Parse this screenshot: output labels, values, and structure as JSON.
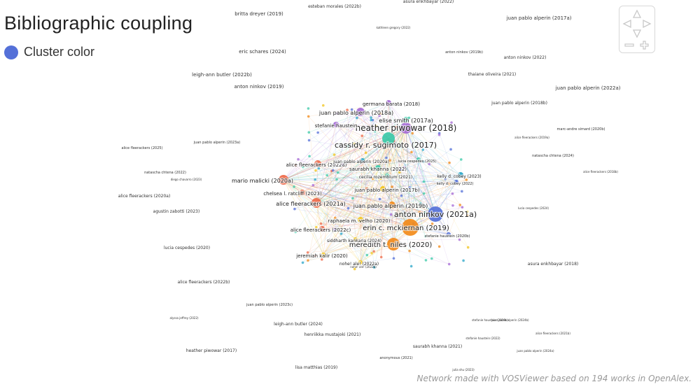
{
  "title": "Bibliographic coupling",
  "legend": {
    "label": "Cluster color",
    "color": "#5470d8"
  },
  "footer": "Network made with VOSViewer based on 194 works in OpenAlex.",
  "navigation": [
    "pan-up",
    "pan-left",
    "pan-right",
    "pan-down",
    "zoom-out",
    "zoom-in"
  ],
  "clusters": {
    "blue": "#5470d8",
    "orange": "#f28a1a",
    "purple": "#a56ad6",
    "teal": "#3cc9a8",
    "red": "#ee6a4a",
    "yellow": "#f2c41c",
    "cyan": "#2aa6c8"
  },
  "nodes": [
    {
      "label": "heather piwowar (2018)",
      "c": "purple",
      "r": 8
    },
    {
      "label": "cassidy r. sugimoto (2017)",
      "c": "teal",
      "r": 9
    },
    {
      "label": "anton ninkov (2021a)",
      "c": "blue",
      "r": 11
    },
    {
      "label": "erin c. mckiernan (2019)",
      "c": "orange",
      "r": 12
    },
    {
      "label": "meredith t. niles (2020)",
      "c": "orange",
      "r": 9
    },
    {
      "label": "juan pablo alperin (2018a)",
      "c": "purple",
      "r": 6
    },
    {
      "label": "germana barata (2018)",
      "c": "purple",
      "r": 4
    },
    {
      "label": "elise smith (2017a)",
      "c": "teal",
      "r": 4
    },
    {
      "label": "stefanie haustein",
      "c": "purple",
      "r": 4
    },
    {
      "label": "saurabh khanna (2022)",
      "c": "teal",
      "r": 4
    },
    {
      "label": "alice fleerackers (2022a)",
      "c": "red",
      "r": 5
    },
    {
      "label": "mario malicki (2020a)",
      "c": "red",
      "r": 7
    },
    {
      "label": "chelsea l. ratcliff (2023)",
      "c": "red",
      "r": 4
    },
    {
      "label": "juan pablo alperin (2017b)",
      "c": "yellow",
      "r": 4
    },
    {
      "label": "alice fleerackers (2021a)",
      "c": "red",
      "r": 7
    },
    {
      "label": "juan pablo alperin (2019b)",
      "c": "orange",
      "r": 5
    },
    {
      "label": "raphaela m. velho (2020)",
      "c": "yellow",
      "r": 4
    },
    {
      "label": "alice fleerackers (2022c)",
      "c": "red",
      "r": 4
    },
    {
      "label": "siddharth kankaria (2024)",
      "c": "yellow",
      "r": 3
    },
    {
      "label": "jeremiah kalir (2020)",
      "c": "yellow",
      "r": 3
    },
    {
      "label": "nohe! ale! (2022a)",
      "c": "yellow",
      "r": 3
    },
    {
      "label": "kelly d. cobey (2023)",
      "c": "cyan",
      "r": 4
    },
    {
      "label": "kelly d. cobey (2022)",
      "c": "blue",
      "r": 3
    },
    {
      "label": "cecilia rozemblum (2021)",
      "c": "teal",
      "r": 3
    },
    {
      "label": "lucia cespedes (2025)",
      "c": "teal",
      "r": 3
    },
    {
      "label": "juan pablo alperin (2020a)",
      "c": "cyan",
      "r": 3
    },
    {
      "label": "stefanie haustein (2020b)",
      "c": "blue",
      "r": 3
    }
  ],
  "labels": [
    {
      "t": "britta dreyer (2019)",
      "s": 7
    },
    {
      "t": "esteban morales (2022b)",
      "s": 6
    },
    {
      "t": "asura enkhbayar (2022)",
      "s": 6
    },
    {
      "t": "juan pablo alperin (2017a)",
      "s": 7
    },
    {
      "t": "eric schares (2024)",
      "s": 7
    },
    {
      "t": "anton ninkov (2019b)",
      "s": 5
    },
    {
      "t": "anton ninkov (2022)",
      "s": 6
    },
    {
      "t": "leigh-ann butler (2022b)",
      "s": 7
    },
    {
      "t": "thaiane oliveira (2021)",
      "s": 6
    },
    {
      "t": "anton ninkov (2019)",
      "s": 7
    },
    {
      "t": "juan pablo alperin (2022a)",
      "s": 7
    },
    {
      "t": "juan pablo alperin (2018b)",
      "s": 6
    },
    {
      "t": "marc-andre simard (2020b)",
      "s": 5
    },
    {
      "t": "juan pablo alperin (2023a)",
      "s": 5
    },
    {
      "t": "natascha chtena (2024)",
      "s": 5
    },
    {
      "t": "natascha chtena (2022)",
      "s": 5
    },
    {
      "t": "alice fleerackers (2025)",
      "s": 5
    },
    {
      "t": "diego chavarro (2023)",
      "s": 4
    },
    {
      "t": "alice fleerackers (2020a)",
      "s": 6
    },
    {
      "t": "agustin zabotti (2023)",
      "s": 6
    },
    {
      "t": "lucia cespedes (2024)",
      "s": 4
    },
    {
      "t": "lucia cespedes (2020)",
      "s": 6
    },
    {
      "t": "asura enkhbayar (2018)",
      "s": 6
    },
    {
      "t": "alice fleerackers (2022b)",
      "s": 6
    },
    {
      "t": "juan pablo alperin (2023c)",
      "s": 5
    },
    {
      "t": "stefanie haustein (2019b)",
      "s": 4
    },
    {
      "t": "leigh-ann butler (2024)",
      "s": 6
    },
    {
      "t": "juan pablo alperin (2024b)",
      "s": 4
    },
    {
      "t": "henriikka mustajoki (2021)",
      "s": 6
    },
    {
      "t": "heather piwowar (2017)",
      "s": 6
    },
    {
      "t": "saurabh khanna (2021)",
      "s": 6
    },
    {
      "t": "stefanie haustein (2022)",
      "s": 4
    },
    {
      "t": "lisa matthias (2019)",
      "s": 6
    },
    {
      "t": "anonymous (2021)",
      "s": 5
    },
    {
      "t": "julia shu (2023)",
      "s": 4
    },
    {
      "t": "alyssa jeffrey (2022)",
      "s": 4
    },
    {
      "t": "kathleen gregory (2022)",
      "s": 4
    },
    {
      "t": "nohe! ale! (2022b)",
      "s": 4
    },
    {
      "t": "juan pablo alperin (2024a)",
      "s": 4
    },
    {
      "t": "alice fleerackers (2019a)",
      "s": 4
    },
    {
      "t": "alice fleerackers (2018b)",
      "s": 4
    },
    {
      "t": "alice fleerackers (2021b)",
      "s": 4
    }
  ]
}
